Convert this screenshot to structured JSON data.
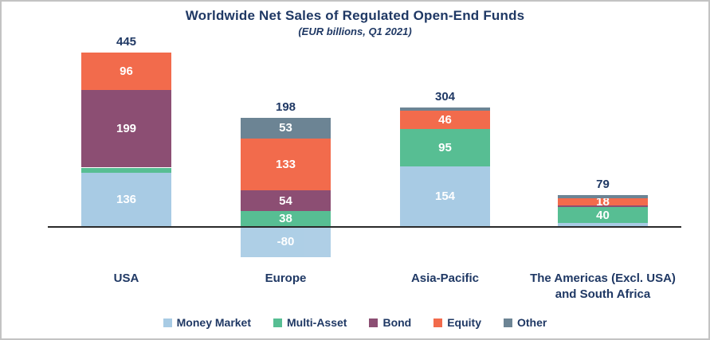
{
  "frame": {
    "border_color": "#C3C3C3",
    "background": "#FFFFFF"
  },
  "colors": {
    "title_text": "#1F3864",
    "segment_label_text": "#FFFFFF",
    "axis_line": "#2A2A2A"
  },
  "chart_data": {
    "type": "bar",
    "stacked": true,
    "title": "Worldwide Net Sales of Regulated Open-End Funds",
    "subtitle": "(EUR billions, Q1 2021)",
    "unit": "EUR billions",
    "grid": false,
    "legend_position": "bottom",
    "categories": [
      "USA",
      "Europe",
      "Asia-Pacific",
      "The Americas (Excl. USA) and South Africa"
    ],
    "series": [
      {
        "name": "Money Market",
        "color": "#A8CBE4",
        "values": [
          136,
          -80,
          154,
          8
        ]
      },
      {
        "name": "Multi-Asset",
        "color": "#57BE93",
        "values": [
          14,
          38,
          95,
          40
        ]
      },
      {
        "name": "Bond",
        "color": "#8C4E73",
        "values": [
          199,
          54,
          0,
          6
        ]
      },
      {
        "name": "Equity",
        "color": "#F26B4C",
        "values": [
          96,
          133,
          46,
          18
        ]
      },
      {
        "name": "Other",
        "color": "#6C8494",
        "values": [
          0,
          53,
          9,
          7
        ]
      }
    ],
    "segment_labels": [
      [
        "136",
        "-80",
        "154",
        ""
      ],
      [
        "",
        "38",
        "95",
        "40"
      ],
      [
        "199",
        "54",
        "",
        ""
      ],
      [
        "96",
        "133",
        "46",
        "18"
      ],
      [
        "",
        "53",
        "",
        ""
      ]
    ],
    "totals": [
      445,
      198,
      304,
      79
    ],
    "total_labels": [
      "445",
      "198",
      "304",
      "79"
    ],
    "legend": [
      "Money Market",
      "Multi-Asset",
      "Bond",
      "Equity",
      "Other"
    ]
  }
}
